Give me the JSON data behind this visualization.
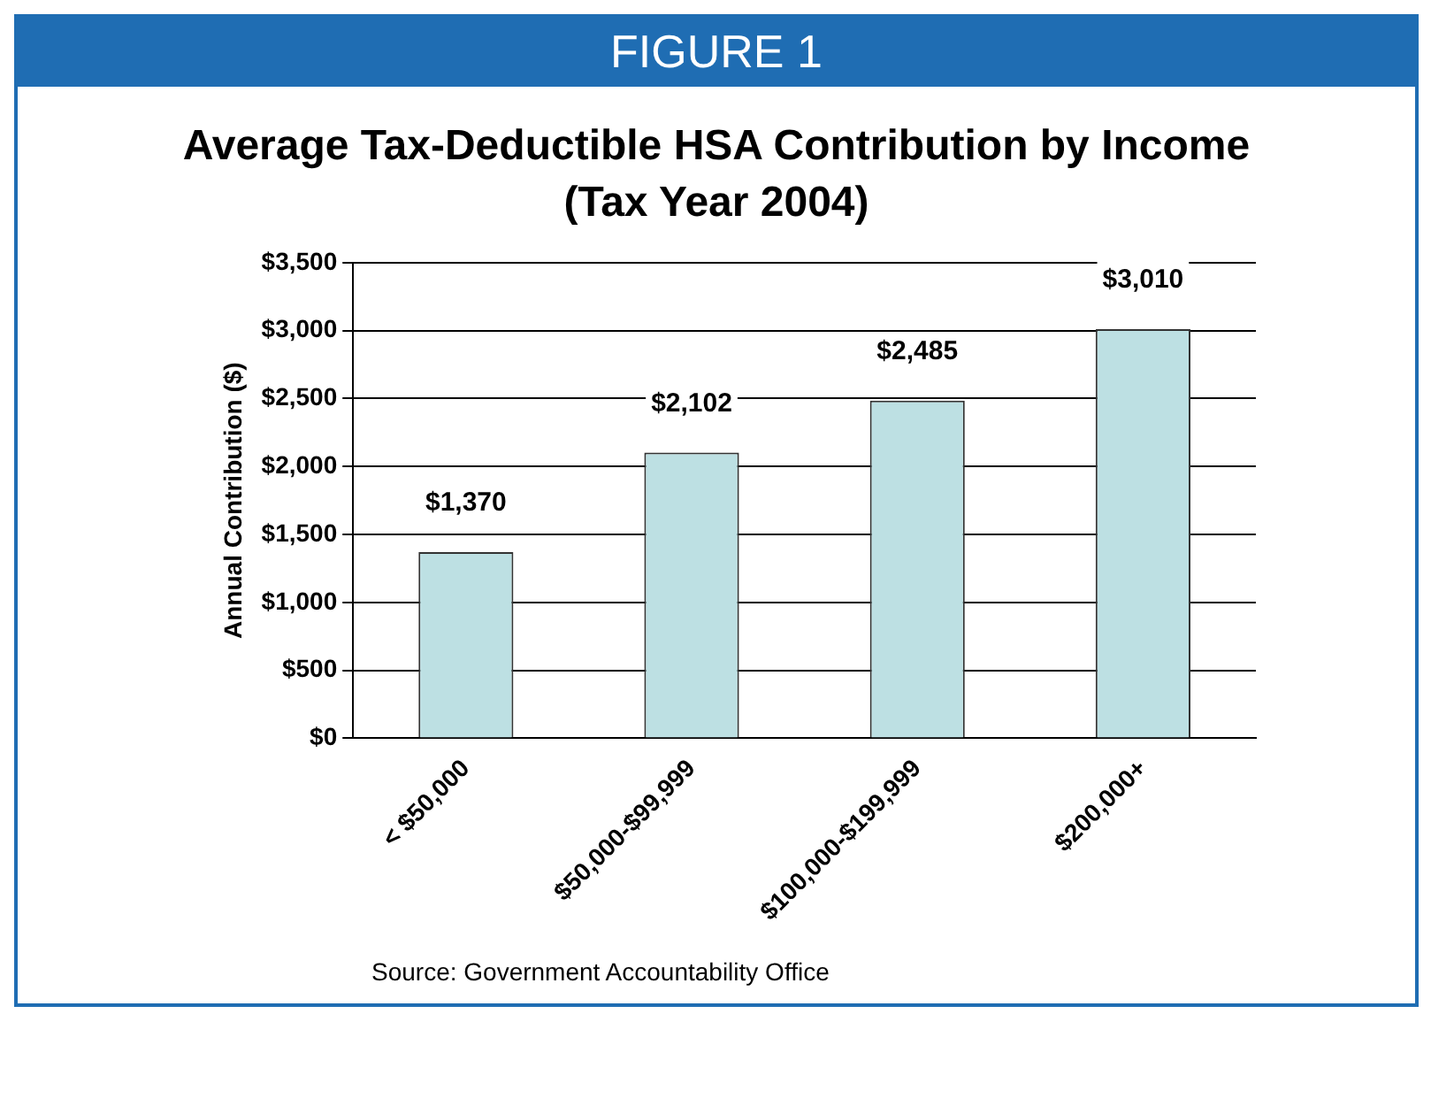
{
  "chart_data": {
    "type": "bar",
    "title": "Average Tax-Deductible HSA Contribution by Income (Tax Year 2004)",
    "ylabel": "Annual Contribution ($)",
    "categories": [
      "< $50,000",
      "$50,000-$99,999",
      "$100,000-$199,999",
      "$200,000+"
    ],
    "values": [
      1370,
      2102,
      2485,
      3010
    ],
    "value_labels": [
      "$1,370",
      "$2,102",
      "$2,485",
      "$3,010"
    ],
    "color": "#bde0e3",
    "ylim": [
      0,
      3500
    ],
    "yticks": [
      {
        "value": 0,
        "label": "$0"
      },
      {
        "value": 500,
        "label": "$500"
      },
      {
        "value": 1000,
        "label": "$1,000"
      },
      {
        "value": 1500,
        "label": "$1,500"
      },
      {
        "value": 2000,
        "label": "$2,000"
      },
      {
        "value": 2500,
        "label": "$2,500"
      },
      {
        "value": 3000,
        "label": "$3,000"
      },
      {
        "value": 3500,
        "label": "$3,500"
      }
    ],
    "grid": "y",
    "legend": false,
    "annotations": [
      "FIGURE 1",
      "Source: Government Accountability Office"
    ]
  }
}
